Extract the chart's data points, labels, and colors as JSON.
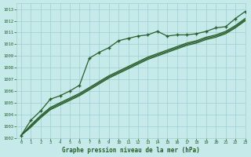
{
  "xlabel": "Graphe pression niveau de la mer (hPa)",
  "x_ticks": [
    0,
    1,
    2,
    3,
    4,
    5,
    6,
    7,
    8,
    9,
    10,
    11,
    12,
    13,
    14,
    15,
    16,
    17,
    18,
    19,
    20,
    21,
    22,
    23
  ],
  "y_ticks": [
    1002,
    1003,
    1004,
    1005,
    1006,
    1007,
    1008,
    1009,
    1010,
    1011,
    1012,
    1013
  ],
  "ylim": [
    1002,
    1013.5
  ],
  "xlim": [
    -0.5,
    23
  ],
  "bg_color": "#c6eaea",
  "grid_color": "#9ecece",
  "line_color": "#2a5e2a",
  "line1_y": [
    1002.2,
    1003.5,
    1004.3,
    1005.3,
    1005.6,
    1006.0,
    1006.5,
    1008.8,
    1009.3,
    1009.7,
    1010.3,
    1010.5,
    1010.7,
    1010.8,
    1011.1,
    1010.7,
    1010.8,
    1010.8,
    1010.9,
    1011.1,
    1011.4,
    1011.5,
    1012.2,
    1012.8
  ],
  "line2_y": [
    1002.2,
    1003.1,
    1003.9,
    1004.6,
    1005.0,
    1005.4,
    1005.8,
    1006.3,
    1006.8,
    1007.3,
    1007.7,
    1008.1,
    1008.5,
    1008.9,
    1009.2,
    1009.5,
    1009.8,
    1010.1,
    1010.3,
    1010.6,
    1010.8,
    1011.1,
    1011.6,
    1012.2
  ],
  "line3_y": [
    1002.2,
    1003.0,
    1003.8,
    1004.5,
    1004.9,
    1005.3,
    1005.7,
    1006.2,
    1006.7,
    1007.2,
    1007.6,
    1008.0,
    1008.4,
    1008.8,
    1009.1,
    1009.4,
    1009.7,
    1010.0,
    1010.2,
    1010.5,
    1010.7,
    1011.0,
    1011.5,
    1012.1
  ],
  "line4_y": [
    1002.2,
    1002.9,
    1003.7,
    1004.4,
    1004.8,
    1005.2,
    1005.6,
    1006.1,
    1006.6,
    1007.1,
    1007.5,
    1007.9,
    1008.3,
    1008.7,
    1009.0,
    1009.3,
    1009.6,
    1009.9,
    1010.1,
    1010.4,
    1010.6,
    1010.9,
    1011.4,
    1012.0
  ]
}
